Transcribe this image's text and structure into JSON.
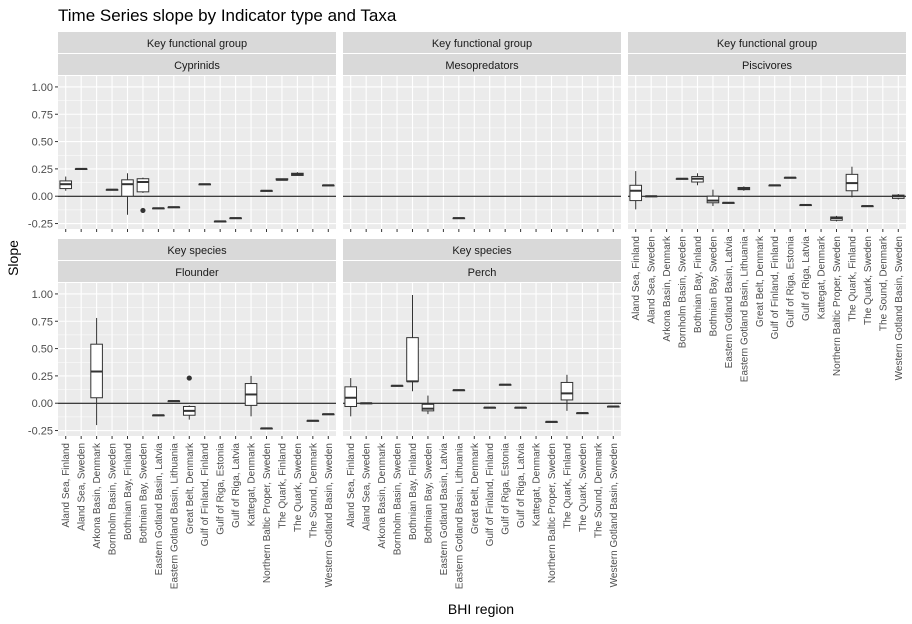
{
  "chart_data": {
    "type": "boxplot",
    "title": "Time Series slope by Indicator type and Taxa",
    "xlabel": "BHI region",
    "ylabel": "Slope",
    "ylim": [
      -0.3,
      1.1
    ],
    "yticks": [
      -0.25,
      0.0,
      0.25,
      0.5,
      0.75,
      1.0
    ],
    "ytick_labels": [
      "-0.25",
      "0.00",
      "0.25",
      "0.50",
      "0.75",
      "1.00"
    ],
    "grid": true,
    "reference_line": 0,
    "categories": [
      "Aland Sea, Finland",
      "Aland Sea, Sweden",
      "Arkona Basin, Denmark",
      "Bornholm Basin, Sweden",
      "Bothnian Bay, Finland",
      "Bothnian Bay, Sweden",
      "Eastern Gotland Basin, Latvia",
      "Eastern Gotland Basin, Lithuania",
      "Great Belt, Denmark",
      "Gulf of Finland, Finland",
      "Gulf of Riga, Estonia",
      "Gulf of Riga, Latvia",
      "Kattegat, Denmark",
      "Northern Baltic Proper, Sweden",
      "The Quark, Finland",
      "The Quark, Sweden",
      "The Sound, Denmark",
      "Western Gotland Basin, Sweden"
    ],
    "panels": [
      {
        "strip_top": "Key functional group",
        "strip_bottom": "Cyprinids",
        "boxes": [
          {
            "category": "Aland Sea, Finland",
            "min": 0.05,
            "q1": 0.07,
            "median": 0.11,
            "q3": 0.14,
            "max": 0.18,
            "outliers": []
          },
          {
            "category": "Aland Sea, Sweden",
            "min": 0.25,
            "q1": 0.25,
            "median": 0.25,
            "q3": 0.25,
            "max": 0.25,
            "outliers": []
          },
          {
            "category": "Bornholm Basin, Sweden",
            "min": 0.06,
            "q1": 0.06,
            "median": 0.06,
            "q3": 0.06,
            "max": 0.06,
            "outliers": []
          },
          {
            "category": "Bothnian Bay, Finland",
            "min": -0.17,
            "q1": 0.0,
            "median": 0.11,
            "q3": 0.15,
            "max": 0.21,
            "outliers": []
          },
          {
            "category": "Bothnian Bay, Sweden",
            "min": 0.03,
            "q1": 0.04,
            "median": 0.13,
            "q3": 0.16,
            "max": 0.17,
            "outliers": [
              -0.13
            ]
          },
          {
            "category": "Eastern Gotland Basin, Latvia",
            "min": -0.11,
            "q1": -0.11,
            "median": -0.11,
            "q3": -0.11,
            "max": -0.11,
            "outliers": []
          },
          {
            "category": "Eastern Gotland Basin, Lithuania",
            "min": -0.1,
            "q1": -0.1,
            "median": -0.1,
            "q3": -0.1,
            "max": -0.1,
            "outliers": []
          },
          {
            "category": "Gulf of Finland, Finland",
            "min": 0.11,
            "q1": 0.11,
            "median": 0.11,
            "q3": 0.11,
            "max": 0.11,
            "outliers": []
          },
          {
            "category": "Gulf of Riga, Estonia",
            "min": -0.23,
            "q1": -0.23,
            "median": -0.23,
            "q3": -0.23,
            "max": -0.23,
            "outliers": []
          },
          {
            "category": "Gulf of Riga, Latvia",
            "min": -0.2,
            "q1": -0.2,
            "median": -0.2,
            "q3": -0.2,
            "max": -0.2,
            "outliers": []
          },
          {
            "category": "Northern Baltic Proper, Sweden",
            "min": 0.05,
            "q1": 0.05,
            "median": 0.05,
            "q3": 0.05,
            "max": 0.05,
            "outliers": []
          },
          {
            "category": "The Quark, Finland",
            "min": 0.15,
            "q1": 0.15,
            "median": 0.15,
            "q3": 0.16,
            "max": 0.16,
            "outliers": []
          },
          {
            "category": "The Quark, Sweden",
            "min": 0.19,
            "q1": 0.19,
            "median": 0.2,
            "q3": 0.21,
            "max": 0.22,
            "outliers": []
          },
          {
            "category": "Western Gotland Basin, Sweden",
            "min": 0.1,
            "q1": 0.1,
            "median": 0.1,
            "q3": 0.1,
            "max": 0.1,
            "outliers": []
          }
        ]
      },
      {
        "strip_top": "Key functional group",
        "strip_bottom": "Mesopredators",
        "boxes": [
          {
            "category": "Eastern Gotland Basin, Lithuania",
            "min": -0.2,
            "q1": -0.2,
            "median": -0.2,
            "q3": -0.2,
            "max": -0.2,
            "outliers": []
          }
        ]
      },
      {
        "strip_top": "Key functional group",
        "strip_bottom": "Piscivores",
        "boxes": [
          {
            "category": "Aland Sea, Finland",
            "min": -0.12,
            "q1": -0.04,
            "median": 0.05,
            "q3": 0.1,
            "max": 0.23,
            "outliers": []
          },
          {
            "category": "Aland Sea, Sweden",
            "min": 0.0,
            "q1": 0.0,
            "median": 0.0,
            "q3": 0.0,
            "max": 0.0,
            "outliers": []
          },
          {
            "category": "Bornholm Basin, Sweden",
            "min": 0.16,
            "q1": 0.16,
            "median": 0.16,
            "q3": 0.16,
            "max": 0.16,
            "outliers": []
          },
          {
            "category": "Bothnian Bay, Finland",
            "min": 0.1,
            "q1": 0.13,
            "median": 0.16,
            "q3": 0.18,
            "max": 0.21,
            "outliers": []
          },
          {
            "category": "Bothnian Bay, Sweden",
            "min": -0.09,
            "q1": -0.06,
            "median": -0.04,
            "q3": 0.0,
            "max": 0.06,
            "outliers": []
          },
          {
            "category": "Eastern Gotland Basin, Latvia",
            "min": -0.06,
            "q1": -0.06,
            "median": -0.06,
            "q3": -0.06,
            "max": -0.06,
            "outliers": []
          },
          {
            "category": "Eastern Gotland Basin, Lithuania",
            "min": 0.05,
            "q1": 0.06,
            "median": 0.07,
            "q3": 0.08,
            "max": 0.09,
            "outliers": []
          },
          {
            "category": "Gulf of Finland, Finland",
            "min": 0.1,
            "q1": 0.1,
            "median": 0.1,
            "q3": 0.1,
            "max": 0.1,
            "outliers": []
          },
          {
            "category": "Gulf of Riga, Estonia",
            "min": 0.17,
            "q1": 0.17,
            "median": 0.17,
            "q3": 0.17,
            "max": 0.17,
            "outliers": []
          },
          {
            "category": "Gulf of Riga, Latvia",
            "min": -0.08,
            "q1": -0.08,
            "median": -0.08,
            "q3": -0.08,
            "max": -0.08,
            "outliers": []
          },
          {
            "category": "Northern Baltic Proper, Sweden",
            "min": -0.23,
            "q1": -0.22,
            "median": -0.2,
            "q3": -0.19,
            "max": -0.18,
            "outliers": []
          },
          {
            "category": "The Quark, Finland",
            "min": -0.01,
            "q1": 0.05,
            "median": 0.12,
            "q3": 0.2,
            "max": 0.27,
            "outliers": []
          },
          {
            "category": "The Quark, Sweden",
            "min": -0.09,
            "q1": -0.09,
            "median": -0.09,
            "q3": -0.09,
            "max": -0.09,
            "outliers": []
          },
          {
            "category": "Western Gotland Basin, Sweden",
            "min": -0.03,
            "q1": -0.02,
            "median": 0.0,
            "q3": 0.01,
            "max": 0.02,
            "outliers": []
          }
        ]
      },
      {
        "strip_top": "Key species",
        "strip_bottom": "Flounder",
        "boxes": [
          {
            "category": "Arkona Basin, Denmark",
            "min": -0.2,
            "q1": 0.05,
            "median": 0.29,
            "q3": 0.54,
            "max": 0.78,
            "outliers": []
          },
          {
            "category": "Eastern Gotland Basin, Latvia",
            "min": -0.11,
            "q1": -0.11,
            "median": -0.11,
            "q3": -0.11,
            "max": -0.11,
            "outliers": []
          },
          {
            "category": "Eastern Gotland Basin, Lithuania",
            "min": 0.02,
            "q1": 0.02,
            "median": 0.02,
            "q3": 0.02,
            "max": 0.02,
            "outliers": []
          },
          {
            "category": "Great Belt, Denmark",
            "min": -0.15,
            "q1": -0.11,
            "median": -0.07,
            "q3": -0.03,
            "max": -0.02,
            "outliers": [
              0.23
            ]
          },
          {
            "category": "Kattegat, Denmark",
            "min": -0.12,
            "q1": -0.02,
            "median": 0.08,
            "q3": 0.18,
            "max": 0.25,
            "outliers": []
          },
          {
            "category": "Northern Baltic Proper, Sweden",
            "min": -0.23,
            "q1": -0.23,
            "median": -0.23,
            "q3": -0.23,
            "max": -0.23,
            "outliers": []
          },
          {
            "category": "The Sound, Denmark",
            "min": -0.16,
            "q1": -0.16,
            "median": -0.16,
            "q3": -0.16,
            "max": -0.16,
            "outliers": []
          },
          {
            "category": "Western Gotland Basin, Sweden",
            "min": -0.1,
            "q1": -0.1,
            "median": -0.1,
            "q3": -0.1,
            "max": -0.1,
            "outliers": []
          }
        ]
      },
      {
        "strip_top": "Key species",
        "strip_bottom": "Perch",
        "boxes": [
          {
            "category": "Aland Sea, Finland",
            "min": -0.12,
            "q1": -0.03,
            "median": 0.05,
            "q3": 0.15,
            "max": 0.23,
            "outliers": []
          },
          {
            "category": "Aland Sea, Sweden",
            "min": 0.0,
            "q1": 0.0,
            "median": 0.0,
            "q3": 0.0,
            "max": 0.0,
            "outliers": []
          },
          {
            "category": "Bornholm Basin, Sweden",
            "min": 0.16,
            "q1": 0.16,
            "median": 0.16,
            "q3": 0.16,
            "max": 0.16,
            "outliers": []
          },
          {
            "category": "Bothnian Bay, Finland",
            "min": 0.11,
            "q1": 0.2,
            "median": 0.2,
            "q3": 0.6,
            "max": 0.99,
            "outliers": []
          },
          {
            "category": "Bothnian Bay, Sweden",
            "min": -0.1,
            "q1": -0.07,
            "median": -0.05,
            "q3": -0.01,
            "max": 0.07,
            "outliers": []
          },
          {
            "category": "Eastern Gotland Basin, Lithuania",
            "min": 0.12,
            "q1": 0.12,
            "median": 0.12,
            "q3": 0.12,
            "max": 0.12,
            "outliers": []
          },
          {
            "category": "Gulf of Finland, Finland",
            "min": -0.04,
            "q1": -0.04,
            "median": -0.04,
            "q3": -0.04,
            "max": -0.04,
            "outliers": []
          },
          {
            "category": "Gulf of Riga, Estonia",
            "min": 0.17,
            "q1": 0.17,
            "median": 0.17,
            "q3": 0.17,
            "max": 0.17,
            "outliers": []
          },
          {
            "category": "Gulf of Riga, Latvia",
            "min": -0.04,
            "q1": -0.04,
            "median": -0.04,
            "q3": -0.04,
            "max": -0.04,
            "outliers": []
          },
          {
            "category": "Northern Baltic Proper, Sweden",
            "min": -0.17,
            "q1": -0.17,
            "median": -0.17,
            "q3": -0.17,
            "max": -0.17,
            "outliers": []
          },
          {
            "category": "The Quark, Finland",
            "min": -0.07,
            "q1": 0.03,
            "median": 0.09,
            "q3": 0.19,
            "max": 0.26,
            "outliers": []
          },
          {
            "category": "The Quark, Sweden",
            "min": -0.09,
            "q1": -0.09,
            "median": -0.09,
            "q3": -0.09,
            "max": -0.09,
            "outliers": []
          },
          {
            "category": "Western Gotland Basin, Sweden",
            "min": -0.03,
            "q1": -0.03,
            "median": -0.03,
            "q3": -0.03,
            "max": -0.03,
            "outliers": []
          }
        ]
      }
    ]
  },
  "colors": {
    "panel_background": "#ebebeb",
    "gridline": "#ffffff",
    "strip_background": "#d9d9d9",
    "box_stroke": "#333333",
    "box_fill": "#ffffff",
    "text": "#1a1a1a",
    "tick_text": "#4d4d4d"
  }
}
